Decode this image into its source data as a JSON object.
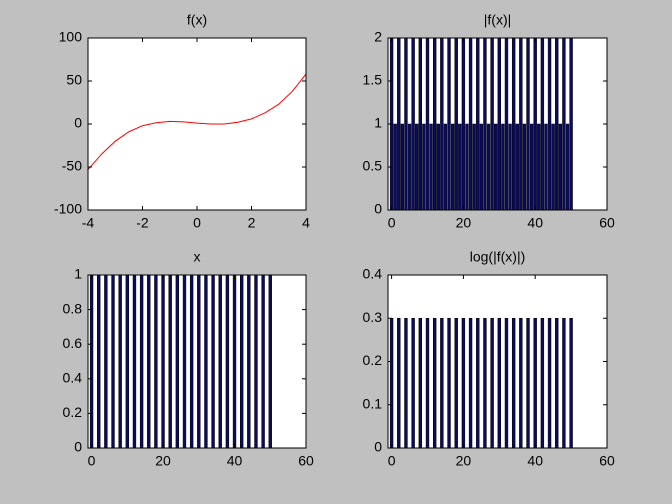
{
  "chart_data": [
    {
      "type": "line",
      "title": "f(x)",
      "color": "#ff0000",
      "x": [
        -4,
        -3.5,
        -3,
        -2.5,
        -2,
        -1.5,
        -1,
        -0.5,
        0,
        0.5,
        1,
        1.5,
        2,
        2.5,
        3,
        3.5,
        4
      ],
      "values": [
        -53,
        -35,
        -20,
        -9,
        -2,
        1.5,
        3,
        2.5,
        1,
        0,
        0,
        2,
        6,
        13,
        23,
        38,
        58
      ],
      "xlim": [
        -4,
        4
      ],
      "ylim": [
        -100,
        100
      ],
      "xticks": [
        -4,
        -2,
        0,
        2,
        4
      ],
      "yticks": [
        -100,
        -50,
        0,
        50,
        100
      ]
    },
    {
      "type": "bar",
      "title": "|f(x)|",
      "color": "#0b0b5e",
      "x": [
        0,
        1,
        2,
        3,
        4,
        5,
        6,
        7,
        8,
        9,
        10,
        11,
        12,
        13,
        14,
        15,
        16,
        17,
        18,
        19,
        20,
        21,
        22,
        23,
        24,
        25,
        26,
        27,
        28,
        29,
        30,
        31,
        32,
        33,
        34,
        35,
        36,
        37,
        38,
        39,
        40,
        41,
        42,
        43,
        44,
        45,
        46,
        47,
        48,
        49,
        50
      ],
      "values": [
        2,
        1,
        2,
        1,
        2,
        1,
        2,
        1,
        2,
        1,
        2,
        1,
        2,
        1,
        2,
        1,
        2,
        1,
        2,
        1,
        2,
        1,
        2,
        1,
        2,
        1,
        2,
        1,
        2,
        1,
        2,
        1,
        2,
        1,
        2,
        1,
        2,
        1,
        2,
        1,
        2,
        1,
        2,
        1,
        2,
        1,
        2,
        1,
        2,
        1,
        2
      ],
      "xlim": [
        -1,
        60
      ],
      "ylim": [
        0,
        2
      ],
      "xticks": [
        0,
        20,
        40,
        60
      ],
      "yticks": [
        0,
        0.5,
        1,
        1.5,
        2
      ]
    },
    {
      "type": "bar",
      "title": "x",
      "color": "#0b0b5e",
      "x": [
        0,
        1,
        2,
        3,
        4,
        5,
        6,
        7,
        8,
        9,
        10,
        11,
        12,
        13,
        14,
        15,
        16,
        17,
        18,
        19,
        20,
        21,
        22,
        23,
        24,
        25,
        26,
        27,
        28,
        29,
        30,
        31,
        32,
        33,
        34,
        35,
        36,
        37,
        38,
        39,
        40,
        41,
        42,
        43,
        44,
        45,
        46,
        47,
        48,
        49,
        50
      ],
      "values": [
        1,
        0,
        1,
        0,
        1,
        0,
        1,
        0,
        1,
        0,
        1,
        0,
        1,
        0,
        1,
        0,
        1,
        0,
        1,
        0,
        1,
        0,
        1,
        0,
        1,
        0,
        1,
        0,
        1,
        0,
        1,
        0,
        1,
        0,
        1,
        0,
        1,
        0,
        1,
        0,
        1,
        0,
        1,
        0,
        1,
        0,
        1,
        0,
        1,
        0,
        1
      ],
      "xlim": [
        -1,
        60
      ],
      "ylim": [
        0,
        1
      ],
      "xticks": [
        0,
        20,
        40,
        60
      ],
      "yticks": [
        0,
        0.2,
        0.4,
        0.6,
        0.8,
        1
      ]
    },
    {
      "type": "bar",
      "title": "log(|f(x)|)",
      "color": "#0b0b5e",
      "x": [
        0,
        1,
        2,
        3,
        4,
        5,
        6,
        7,
        8,
        9,
        10,
        11,
        12,
        13,
        14,
        15,
        16,
        17,
        18,
        19,
        20,
        21,
        22,
        23,
        24,
        25,
        26,
        27,
        28,
        29,
        30,
        31,
        32,
        33,
        34,
        35,
        36,
        37,
        38,
        39,
        40,
        41,
        42,
        43,
        44,
        45,
        46,
        47,
        48,
        49,
        50
      ],
      "values": [
        0.3,
        0,
        0.3,
        0,
        0.3,
        0,
        0.3,
        0,
        0.3,
        0,
        0.3,
        0,
        0.3,
        0,
        0.3,
        0,
        0.3,
        0,
        0.3,
        0,
        0.3,
        0,
        0.3,
        0,
        0.3,
        0,
        0.3,
        0,
        0.3,
        0,
        0.3,
        0,
        0.3,
        0,
        0.3,
        0,
        0.3,
        0,
        0.3,
        0,
        0.3,
        0,
        0.3,
        0,
        0.3,
        0,
        0.3,
        0,
        0.3,
        0,
        0.3
      ],
      "xlim": [
        -1,
        60
      ],
      "ylim": [
        0,
        0.4
      ],
      "xticks": [
        0,
        20,
        40,
        60
      ],
      "yticks": [
        0,
        0.1,
        0.2,
        0.3,
        0.4
      ]
    }
  ]
}
